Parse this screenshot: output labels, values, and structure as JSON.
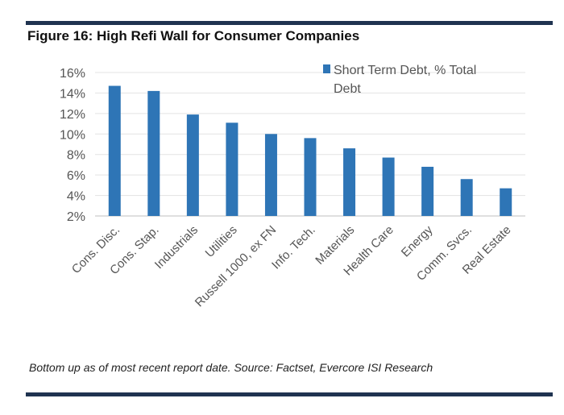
{
  "figure": {
    "title": "Figure 16: High Refi Wall for Consumer Companies",
    "footnote": "Bottom up as of most recent report date. Source: Factset, Evercore ISI Research"
  },
  "chart_data": {
    "type": "bar",
    "title": "Figure 16: High Refi Wall for Consumer Companies",
    "xlabel": "",
    "ylabel": "",
    "ylim": [
      2,
      16
    ],
    "yticks": [
      2,
      4,
      6,
      8,
      10,
      12,
      14,
      16
    ],
    "ytick_format": "%",
    "grid": true,
    "legend_position": "top-right",
    "categories": [
      "Cons. Disc.",
      "Cons. Stap.",
      "Industrials",
      "Utilities",
      "Russell 1000, ex FN",
      "Info. Tech.",
      "Materials",
      "Health Care",
      "Energy",
      "Comm. Svcs.",
      "Real Estate"
    ],
    "series": [
      {
        "name": "Short Term Debt, % Total Debt",
        "legend_lines": [
          "Short Term Debt, % Total",
          "Debt"
        ],
        "color": "#2e75b6",
        "values": [
          14.7,
          14.2,
          11.9,
          11.1,
          10.0,
          9.6,
          8.6,
          7.7,
          6.8,
          5.6,
          4.7
        ]
      }
    ]
  }
}
